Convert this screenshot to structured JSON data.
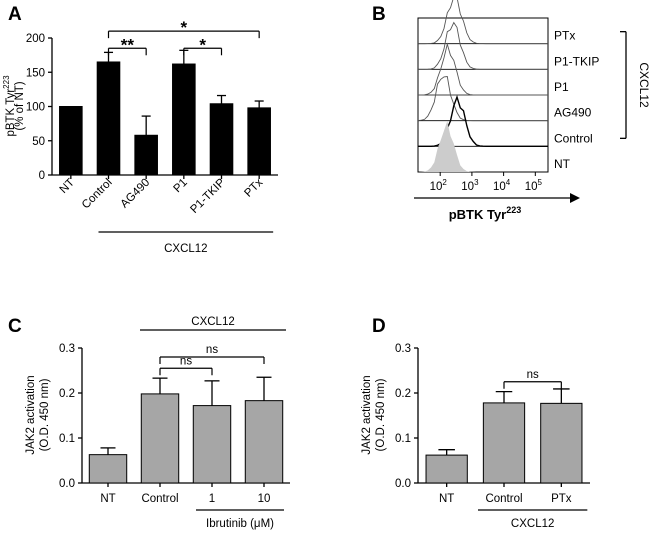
{
  "panels": {
    "A": "A",
    "B": "B",
    "C": "C",
    "D": "D"
  },
  "chart_data": [
    {
      "id": "A",
      "type": "bar",
      "ylabel_main": "pBTK Tyr",
      "ylabel_sup": "223",
      "ylabel_line2": "(% of NT)",
      "categories": [
        "NT",
        "Control",
        "AG490",
        "P1",
        "P1-TKIP",
        "PTx"
      ],
      "values": [
        100,
        165,
        58,
        162,
        104,
        98
      ],
      "errors": [
        0,
        14,
        28,
        20,
        12,
        10
      ],
      "ylim": [
        0,
        200
      ],
      "yticks": [
        0,
        50,
        100,
        150,
        200
      ],
      "bar_color": "#000000",
      "group_label": "CXCL12",
      "group_from": 1,
      "group_to": 5,
      "significance": [
        {
          "from": 1,
          "to": 2,
          "label": "**",
          "y": 185
        },
        {
          "from": 3,
          "to": 4,
          "label": "*",
          "y": 185
        },
        {
          "from": 1,
          "to": 5,
          "label": "*",
          "y": 210
        }
      ]
    },
    {
      "id": "B",
      "type": "histogram-stack",
      "xlabel_main": "pBTK Tyr",
      "xlabel_sup": "223",
      "xtick_base": "10",
      "xticks": [
        2,
        3,
        4,
        5
      ],
      "xlim_log": [
        1.3,
        5.4
      ],
      "samples": [
        "PTx",
        "P1-TKIP",
        "P1",
        "AG490",
        "Control",
        "NT"
      ],
      "peak_log": [
        2.45,
        2.4,
        2.25,
        2.1,
        2.55,
        2.2
      ],
      "filled_color": "#cccccc",
      "bracket_label": "CXCL12"
    },
    {
      "id": "C",
      "type": "bar",
      "ylabel_line1": "JAK2 activation",
      "ylabel_line2": "(O.D. 450 nm)",
      "categories": [
        "NT",
        "Control",
        "1",
        "10"
      ],
      "values": [
        0.063,
        0.198,
        0.172,
        0.183
      ],
      "errors": [
        0.015,
        0.035,
        0.055,
        0.052
      ],
      "ylim": [
        0,
        0.3
      ],
      "yticks": [
        "0.0",
        "0.1",
        "0.2",
        "0.3"
      ],
      "bar_color": "#a6a6a6",
      "top_group_label": "CXCL12",
      "top_group_from": 1,
      "top_group_to": 3,
      "bottom_group_label": "Ibrutinib (μM)",
      "bottom_group_from": 2,
      "bottom_group_to": 3,
      "significance": [
        {
          "from": 1,
          "to": 2,
          "label": "ns",
          "y": 0.255
        },
        {
          "from": 1,
          "to": 3,
          "label": "ns",
          "y": 0.28
        }
      ]
    },
    {
      "id": "D",
      "type": "bar",
      "ylabel_line1": "JAK2 activation",
      "ylabel_line2": "(O.D. 450 nm)",
      "categories": [
        "NT",
        "Control",
        "PTx"
      ],
      "values": [
        0.062,
        0.178,
        0.177
      ],
      "errors": [
        0.012,
        0.025,
        0.032
      ],
      "ylim": [
        0,
        0.3
      ],
      "yticks": [
        "0.0",
        "0.1",
        "0.2",
        "0.3"
      ],
      "bar_color": "#a6a6a6",
      "group_label": "CXCL12",
      "group_from": 1,
      "group_to": 2,
      "significance": [
        {
          "from": 1,
          "to": 2,
          "label": "ns",
          "y": 0.225
        }
      ]
    }
  ]
}
